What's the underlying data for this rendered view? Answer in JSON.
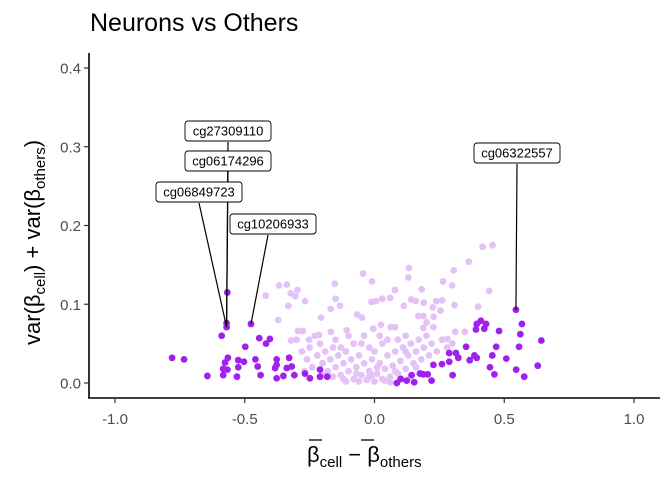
{
  "chart_data": {
    "type": "scatter",
    "title": "Neurons vs Others",
    "xlabel": {
      "main": "β",
      "sub1": "cell",
      "minus": " − ",
      "main2": "β",
      "sub2": "others"
    },
    "ylabel": {
      "pre": "var(β",
      "sub1": "cell",
      "mid": ") + var(β",
      "sub2": "others",
      "post": ")"
    },
    "xlim": [
      -1.1,
      1.1
    ],
    "ylim": [
      -0.02,
      0.42
    ],
    "x_ticks": [
      -1.0,
      -0.5,
      0.0,
      0.5,
      1.0
    ],
    "x_tick_labels": [
      "-1.0",
      "-0.5",
      "0.0",
      "0.5",
      "1.0"
    ],
    "y_ticks": [
      0.0,
      0.1,
      0.2,
      0.3,
      0.4
    ],
    "y_tick_labels": [
      "0.0",
      "0.1",
      "0.2",
      "0.3",
      "0.4"
    ],
    "colors": {
      "highlight": "#a020f0",
      "background": "#e4c2f8"
    },
    "series": [
      {
        "name": "background",
        "points": [
          [
            0.417,
            0.173
          ],
          [
            0.455,
            0.175
          ],
          [
            0.363,
            0.154
          ],
          [
            0.305,
            0.143
          ],
          [
            0.133,
            0.146
          ],
          [
            0.13,
            0.134
          ],
          [
            -0.044,
            0.139
          ],
          [
            -0.01,
            0.129
          ],
          [
            0.264,
            0.129
          ],
          [
            0.299,
            0.124
          ],
          [
            0.442,
            0.117
          ],
          [
            -0.368,
            0.124
          ],
          [
            -0.338,
            0.125
          ],
          [
            -0.153,
            0.126
          ],
          [
            -0.323,
            0.114
          ],
          [
            -0.297,
            0.118
          ],
          [
            -0.305,
            0.11
          ],
          [
            -0.268,
            0.104
          ],
          [
            -0.15,
            0.107
          ],
          [
            0.079,
            0.118
          ],
          [
            0.182,
            0.119
          ],
          [
            -0.012,
            0.103
          ],
          [
            0.006,
            0.104
          ],
          [
            0.03,
            0.107
          ],
          [
            0.06,
            0.108
          ],
          [
            0.141,
            0.106
          ],
          [
            0.159,
            0.104
          ],
          [
            0.19,
            0.102
          ],
          [
            0.238,
            0.104
          ],
          [
            0.261,
            0.105
          ],
          [
            -0.332,
            0.098
          ],
          [
            -0.169,
            0.094
          ],
          [
            -0.133,
            0.098
          ],
          [
            0.113,
            0.098
          ],
          [
            0.308,
            0.099
          ],
          [
            0.399,
            0.097
          ],
          [
            0.225,
            0.096
          ],
          [
            0.254,
            0.092
          ],
          [
            -0.371,
            0.08
          ],
          [
            -0.206,
            0.083
          ],
          [
            -0.067,
            0.087
          ],
          [
            -0.048,
            0.083
          ],
          [
            0.169,
            0.085
          ],
          [
            0.188,
            0.085
          ],
          [
            0.228,
            0.084
          ],
          [
            0.201,
            0.077
          ],
          [
            0.025,
            0.074
          ],
          [
            -0.005,
            0.069
          ],
          [
            0.062,
            0.071
          ],
          [
            0.079,
            0.071
          ],
          [
            0.188,
            0.07
          ],
          [
            0.227,
            0.071
          ],
          [
            -0.295,
            0.066
          ],
          [
            -0.276,
            0.066
          ],
          [
            -0.168,
            0.065
          ],
          [
            -0.107,
            0.067
          ],
          [
            -0.214,
            0.061
          ],
          [
            -0.321,
            0.054
          ],
          [
            -0.252,
            0.055
          ],
          [
            0.311,
            0.065
          ],
          [
            0.348,
            0.065
          ],
          [
            0.281,
            0.056
          ],
          [
            -0.419,
            0.111
          ],
          [
            -0.28,
            0.04
          ],
          [
            -0.26,
            0.03
          ],
          [
            -0.25,
            0.045
          ],
          [
            -0.24,
            0.02
          ],
          [
            -0.22,
            0.035
          ],
          [
            -0.21,
            0.05
          ],
          [
            -0.2,
            0.025
          ],
          [
            -0.19,
            0.04
          ],
          [
            -0.18,
            0.015
          ],
          [
            -0.17,
            0.03
          ],
          [
            -0.16,
            0.045
          ],
          [
            -0.15,
            0.02
          ],
          [
            -0.14,
            0.035
          ],
          [
            -0.13,
            0.01
          ],
          [
            -0.12,
            0.025
          ],
          [
            -0.11,
            0.04
          ],
          [
            -0.1,
            0.015
          ],
          [
            -0.09,
            0.03
          ],
          [
            -0.08,
            0.005
          ],
          [
            -0.07,
            0.02
          ],
          [
            -0.06,
            0.035
          ],
          [
            -0.05,
            0.01
          ],
          [
            -0.04,
            0.025
          ],
          [
            -0.03,
            0.004
          ],
          [
            -0.02,
            0.015
          ],
          [
            -0.01,
            0.03
          ],
          [
            0,
            0.002
          ],
          [
            0.01,
            0.012
          ],
          [
            0.02,
            0.025
          ],
          [
            0.03,
            0.005
          ],
          [
            0.04,
            0.018
          ],
          [
            0.05,
            0.035
          ],
          [
            0.06,
            0.008
          ],
          [
            0.07,
            0.022
          ],
          [
            0.08,
            0.04
          ],
          [
            0.09,
            0.012
          ],
          [
            0.1,
            0.028
          ],
          [
            0.11,
            0.045
          ],
          [
            0.12,
            0.018
          ],
          [
            0.13,
            0.035
          ],
          [
            0.14,
            0.05
          ],
          [
            0.15,
            0.025
          ],
          [
            0.16,
            0.04
          ],
          [
            0.17,
            0.055
          ],
          [
            0.18,
            0.03
          ],
          [
            0.19,
            0.045
          ],
          [
            0.2,
            0.06
          ],
          [
            0.21,
            0.035
          ],
          [
            0.22,
            0.05
          ],
          [
            0.24,
            0.04
          ],
          [
            0.26,
            0.055
          ],
          [
            0.28,
            0.045
          ],
          [
            0.3,
            0.05
          ],
          [
            -0.3,
            0.055
          ],
          [
            -0.23,
            0.06
          ],
          [
            -0.15,
            0.055
          ],
          [
            -0.05,
            0.05
          ],
          [
            0.05,
            0.055
          ],
          [
            0.12,
            0.06
          ],
          [
            -0.1,
            0.06
          ],
          [
            0,
            0.04
          ],
          [
            0.03,
            0.05
          ],
          [
            -0.02,
            0.045
          ],
          [
            -0.12,
            0.005
          ],
          [
            -0.06,
            0.002
          ],
          [
            0.06,
            0.001
          ],
          [
            0.1,
            0.006
          ],
          [
            -0.16,
            0.008
          ],
          [
            0.14,
            0.008
          ],
          [
            -0.08,
            0.05
          ],
          [
            0.09,
            0.055
          ],
          [
            0.18,
            0.012
          ],
          [
            -0.2,
            0.01
          ],
          [
            0.02,
            0.06
          ],
          [
            -0.04,
            0.06
          ],
          [
            -0.27,
            0.015
          ],
          [
            -0.11,
            0.002
          ],
          [
            -0.02,
            0.008
          ],
          [
            0.04,
            0.003
          ],
          [
            0.08,
            0.015
          ],
          [
            -0.07,
            0.012
          ],
          [
            0.01,
            0.02
          ],
          [
            -0.01,
            0.01
          ],
          [
            0.12,
            0.04
          ],
          [
            -0.13,
            0.045
          ],
          [
            0.16,
            0.02
          ]
        ]
      },
      {
        "name": "highlight",
        "points": [
          [
            -0.567,
            0.115
          ],
          [
            -0.57,
            0.076
          ],
          [
            -0.57,
            0.071
          ],
          [
            -0.476,
            0.075
          ],
          [
            -0.589,
            0.06
          ],
          [
            -0.444,
            0.057
          ],
          [
            -0.403,
            0.056
          ],
          [
            -0.418,
            0.05
          ],
          [
            -0.498,
            0.046
          ],
          [
            -0.78,
            0.032
          ],
          [
            -0.734,
            0.03
          ],
          [
            -0.565,
            0.032
          ],
          [
            -0.576,
            0.026
          ],
          [
            -0.525,
            0.029
          ],
          [
            -0.503,
            0.027
          ],
          [
            -0.459,
            0.03
          ],
          [
            -0.377,
            0.03
          ],
          [
            -0.329,
            0.032
          ],
          [
            -0.583,
            0.018
          ],
          [
            -0.567,
            0.017
          ],
          [
            -0.525,
            0.02
          ],
          [
            -0.45,
            0.021
          ],
          [
            -0.383,
            0.019
          ],
          [
            -0.377,
            0.023
          ],
          [
            -0.338,
            0.019
          ],
          [
            -0.319,
            0.021
          ],
          [
            -0.644,
            0.009
          ],
          [
            -0.583,
            0.01
          ],
          [
            -0.53,
            0.008
          ],
          [
            -0.439,
            0.01
          ],
          [
            -0.377,
            0.006
          ],
          [
            -0.351,
            0.009
          ],
          [
            -0.309,
            0.01
          ],
          [
            -0.268,
            0.012
          ],
          [
            -0.249,
            0.006
          ],
          [
            -0.21,
            0.017
          ],
          [
            -0.21,
            0.008
          ],
          [
            -0.182,
            0.008
          ],
          [
            0.545,
            0.093
          ],
          [
            0.568,
            0.075
          ],
          [
            0.41,
            0.079
          ],
          [
            0.394,
            0.075
          ],
          [
            0.43,
            0.075
          ],
          [
            0.423,
            0.069
          ],
          [
            0.391,
            0.068
          ],
          [
            0.48,
            0.066
          ],
          [
            0.562,
            0.062
          ],
          [
            0.643,
            0.054
          ],
          [
            0.557,
            0.046
          ],
          [
            0.469,
            0.046
          ],
          [
            0.353,
            0.046
          ],
          [
            0.508,
            0.031
          ],
          [
            0.454,
            0.035
          ],
          [
            0.385,
            0.035
          ],
          [
            0.394,
            0.032
          ],
          [
            0.367,
            0.029
          ],
          [
            0.288,
            0.038
          ],
          [
            0.314,
            0.038
          ],
          [
            0.323,
            0.032
          ],
          [
            0.288,
            0.027
          ],
          [
            0.26,
            0.024
          ],
          [
            0.227,
            0.023
          ],
          [
            0.629,
            0.022
          ],
          [
            0.445,
            0.02
          ],
          [
            0.546,
            0.017
          ],
          [
            0.462,
            0.011
          ],
          [
            0.577,
            0.008
          ],
          [
            0.301,
            0.01
          ],
          [
            0.22,
            0.003
          ],
          [
            0.188,
            0.011
          ],
          [
            0.205,
            0.011
          ],
          [
            0.143,
            0.01
          ],
          [
            0.175,
            0.012
          ],
          [
            0.153,
            0.001
          ],
          [
            0.124,
            0.003
          ],
          [
            0.086,
            0.0
          ],
          [
            0.101,
            0.005
          ]
        ]
      }
    ],
    "annotations": [
      {
        "text": "cg27309110",
        "x": -0.57,
        "y": 0.076
      },
      {
        "text": "cg06174296",
        "x": -0.57,
        "y": 0.071
      },
      {
        "text": "cg06849723",
        "x": -0.57,
        "y": 0.071
      },
      {
        "text": "cg10206933",
        "x": -0.476,
        "y": 0.075
      },
      {
        "text": "cg06322557",
        "x": 0.545,
        "y": 0.093
      }
    ],
    "grid": false,
    "legend": "none"
  }
}
